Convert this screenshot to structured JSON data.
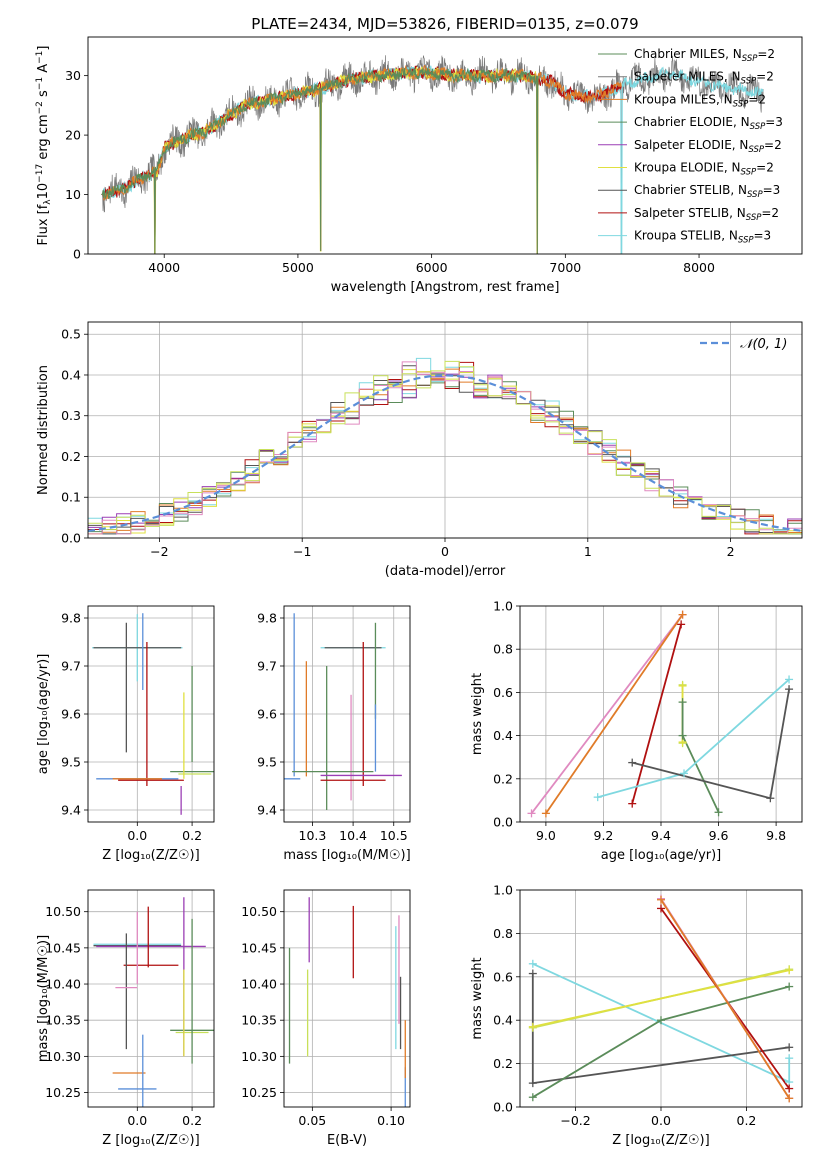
{
  "chart_data": [
    {
      "id": "spectrum",
      "type": "line",
      "title": "PLATE=2434, MJD=53826, FIBERID=0135, z=0.079",
      "xlabel": "wavelength [Angstrom, rest frame]",
      "ylabel_parts": [
        "Flux [f",
        "λ",
        "10",
        "−17",
        " erg cm",
        "−2",
        " s",
        "−1",
        " A",
        "−1",
        "]"
      ],
      "xlim": [
        3430,
        8770
      ],
      "ylim": [
        0,
        36.5
      ],
      "xticks": [
        4000,
        5000,
        6000,
        7000,
        8000
      ],
      "yticks": [
        0,
        10,
        20,
        30
      ],
      "grid": false,
      "legend_position": "right",
      "legend": [
        {
          "label": "Chabrier MILES, N",
          "sub": "SSP",
          "suffix": "=2",
          "color": "#5b8c5a"
        },
        {
          "label": "Salpeter MILES, N",
          "sub": "SSP",
          "suffix": "=2",
          "color": "#7a7a7a"
        },
        {
          "label": "Kroupa MILES, N",
          "sub": "SSP",
          "suffix": "=2",
          "color": "#e07b28"
        },
        {
          "label": "Chabrier ELODIE, N",
          "sub": "SSP",
          "suffix": "=3",
          "color": "#5b8c5a"
        },
        {
          "label": "Salpeter ELODIE, N",
          "sub": "SSP",
          "suffix": "=2",
          "color": "#9b3fb5"
        },
        {
          "label": "Kroupa ELODIE, N",
          "sub": "SSP",
          "suffix": "=2",
          "color": "#e0e040"
        },
        {
          "label": "Chabrier STELIB, N",
          "sub": "SSP",
          "suffix": "=3",
          "color": "#555555"
        },
        {
          "label": "Salpeter STELIB, N",
          "sub": "SSP",
          "suffix": "=2",
          "color": "#b01010"
        },
        {
          "label": "Kroupa STELIB, N",
          "sub": "SSP",
          "suffix": "=3",
          "color": "#7fd8e0"
        }
      ],
      "series": [
        {
          "color": "#7fd8e0",
          "start": 3530,
          "end": 8480
        },
        {
          "color": "#b01010",
          "start": 3530,
          "end": 7420
        },
        {
          "color": "#e0e040",
          "start": 3900,
          "end": 6800
        },
        {
          "color": "#e07b28",
          "start": 3530,
          "end": 7420
        },
        {
          "color": "#5b8c5a",
          "start": 3530,
          "end": 6800
        }
      ],
      "data_series": {
        "color": "#7a7a7a",
        "start": 3530,
        "end": 8480
      },
      "shape": [
        [
          3530,
          10
        ],
        [
          3700,
          11
        ],
        [
          3850,
          13
        ],
        [
          3950,
          14
        ],
        [
          4000,
          18
        ],
        [
          4100,
          19
        ],
        [
          4200,
          20
        ],
        [
          4300,
          20.5
        ],
        [
          4400,
          22
        ],
        [
          4600,
          25
        ],
        [
          4800,
          26
        ],
        [
          5000,
          27
        ],
        [
          5200,
          28
        ],
        [
          5400,
          29.5
        ],
        [
          5600,
          30
        ],
        [
          5800,
          30.5
        ],
        [
          6000,
          30.5
        ],
        [
          6200,
          30
        ],
        [
          6500,
          30
        ],
        [
          6700,
          30
        ],
        [
          6900,
          29
        ],
        [
          7000,
          27
        ],
        [
          7100,
          26.5
        ],
        [
          7200,
          26.5
        ],
        [
          7300,
          27
        ],
        [
          7500,
          29
        ],
        [
          7700,
          30
        ],
        [
          7800,
          30.5
        ],
        [
          8000,
          29
        ],
        [
          8200,
          28
        ],
        [
          8480,
          27
        ]
      ],
      "dips": [
        [
          3530,
          0
        ],
        [
          3930,
          0
        ],
        [
          5170,
          0.5
        ],
        [
          6790,
          0
        ],
        [
          7420,
          0
        ]
      ]
    },
    {
      "id": "residuals",
      "type": "line",
      "xlabel": "(data-model)/error",
      "ylabel": "Normed distribution",
      "xlim": [
        -2.5,
        2.5
      ],
      "ylim": [
        0,
        0.53
      ],
      "xticks": [
        -2,
        -1,
        0,
        1,
        2
      ],
      "xtick_labels": [
        "−2",
        "−1",
        "0",
        "1",
        "2"
      ],
      "yticks": [
        0,
        0.1,
        0.2,
        0.3,
        0.4,
        0.5
      ],
      "ytick_labels": [
        "0.0",
        "0.1",
        "0.2",
        "0.3",
        "0.4",
        "0.5"
      ],
      "grid": true,
      "legend_position": "top-right",
      "legend": [
        {
          "label": "𝒩(0, 1)",
          "color": "#5b8fd9",
          "dash": true
        }
      ],
      "hist_colors": [
        "#5b8c5a",
        "#7fd8e0",
        "#b01010",
        "#e07b28",
        "#9b3fb5",
        "#e0e040",
        "#555555",
        "#e08ac0",
        "#c8e05a"
      ]
    },
    {
      "id": "age-Z",
      "type": "scatter",
      "xlabel": "Z [log₁₀(Z/Z☉)]",
      "ylabel": "age  [log₁₀(age/yr)]",
      "xlim": [
        -0.18,
        0.28
      ],
      "ylim": [
        9.375,
        9.825
      ],
      "xticks": [
        0.0,
        0.2
      ],
      "xtick_labels": [
        "0.0",
        "0.2"
      ],
      "yticks": [
        9.4,
        9.5,
        9.6,
        9.7,
        9.8
      ],
      "ytick_labels": [
        "9.4",
        "9.5",
        "9.6",
        "9.7",
        "9.8"
      ],
      "grid": true,
      "errorbars": [
        {
          "x": 0.0,
          "y": 9.738,
          "xerr": 0.165,
          "yerr": 0.07,
          "color": "#7fd8e0"
        },
        {
          "x": 0.0,
          "y": 9.738,
          "xerr": 0.16,
          "yerr": 0.0,
          "color": "#555555"
        },
        {
          "x": -0.04,
          "y": 9.655,
          "xerr": 0.0,
          "yerr": 0.135,
          "color": "#555555"
        },
        {
          "x": 0.02,
          "y": 9.73,
          "xerr": 0.0,
          "yerr": 0.08,
          "color": "#5b8fd9"
        },
        {
          "x": 0.035,
          "y": 9.6,
          "xerr": 0.0,
          "yerr": 0.15,
          "color": "#b01010"
        },
        {
          "x": 0.0,
          "y": 9.465,
          "xerr": 0.15,
          "yerr": 0.0,
          "color": "#5b8fd9"
        },
        {
          "x": 0.0,
          "y": 9.465,
          "xerr": 0.09,
          "yerr": 0.0,
          "color": "#e07b28"
        },
        {
          "x": 0.05,
          "y": 9.462,
          "xerr": 0.12,
          "yerr": 0.0,
          "color": "#b01010"
        },
        {
          "x": 0.2,
          "y": 9.48,
          "xerr": 0.08,
          "yerr": 0.0,
          "color": "#5b8c5a"
        },
        {
          "x": 0.21,
          "y": 9.475,
          "xerr": 0.06,
          "yerr": 0.0,
          "color": "#c8e05a"
        },
        {
          "x": 0.2,
          "y": 9.6,
          "xerr": 0.0,
          "yerr": 0.1,
          "color": "#5b8c5a"
        },
        {
          "x": 0.17,
          "y": 9.555,
          "xerr": 0.0,
          "yerr": 0.09,
          "color": "#e0e040"
        },
        {
          "x": 0.16,
          "y": 9.42,
          "xerr": 0.0,
          "yerr": 0.03,
          "color": "#9b3fb5"
        }
      ]
    },
    {
      "id": "age-mass",
      "type": "scatter",
      "xlabel": "mass [log₁₀(M/M☉)]",
      "xlim": [
        10.23,
        10.54
      ],
      "ylim": [
        9.375,
        9.825
      ],
      "xticks": [
        10.3,
        10.4,
        10.5
      ],
      "xtick_labels": [
        "10.3",
        "10.4",
        "10.5"
      ],
      "yticks": [
        9.4,
        9.5,
        9.6,
        9.7,
        9.8
      ],
      "ytick_labels": [
        "9.4",
        "9.5",
        "9.6",
        "9.7",
        "9.8"
      ],
      "grid": true,
      "errorbars": [
        {
          "x": 10.4,
          "y": 9.738,
          "xerr": 0.08,
          "yerr": 0.0,
          "color": "#7fd8e0"
        },
        {
          "x": 10.4,
          "y": 9.738,
          "xerr": 0.07,
          "yerr": 0.0,
          "color": "#555555"
        },
        {
          "x": 10.255,
          "y": 9.64,
          "xerr": 0.0,
          "yerr": 0.17,
          "color": "#5b8fd9"
        },
        {
          "x": 10.285,
          "y": 9.59,
          "xerr": 0.0,
          "yerr": 0.12,
          "color": "#e07b28"
        },
        {
          "x": 10.335,
          "y": 9.55,
          "xerr": 0.0,
          "yerr": 0.15,
          "color": "#5b8c5a"
        },
        {
          "x": 10.395,
          "y": 9.53,
          "xerr": 0.0,
          "yerr": 0.11,
          "color": "#e08ac0"
        },
        {
          "x": 10.425,
          "y": 9.6,
          "xerr": 0.0,
          "yerr": 0.15,
          "color": "#b01010"
        },
        {
          "x": 10.455,
          "y": 9.69,
          "xerr": 0.0,
          "yerr": 0.1,
          "color": "#5b8c5a"
        },
        {
          "x": 10.455,
          "y": 9.55,
          "xerr": 0.0,
          "yerr": 0.07,
          "color": "#5b8fd9"
        },
        {
          "x": 10.35,
          "y": 9.48,
          "xerr": 0.1,
          "yerr": 0.0,
          "color": "#5b8c5a"
        },
        {
          "x": 10.42,
          "y": 9.472,
          "xerr": 0.1,
          "yerr": 0.0,
          "color": "#9b3fb5"
        },
        {
          "x": 10.25,
          "y": 9.465,
          "xerr": 0.02,
          "yerr": 0.0,
          "color": "#5b8fd9"
        },
        {
          "x": 10.4,
          "y": 9.462,
          "xerr": 0.08,
          "yerr": 0.0,
          "color": "#b01010"
        }
      ]
    },
    {
      "id": "weight-age",
      "type": "line",
      "xlabel": "age  [log₁₀(age/yr)]",
      "ylabel": "mass weight",
      "xlim": [
        8.91,
        9.89
      ],
      "ylim": [
        0,
        1
      ],
      "xticks": [
        9.0,
        9.2,
        9.4,
        9.6,
        9.8
      ],
      "xtick_labels": [
        "9.0",
        "9.2",
        "9.4",
        "9.6",
        "9.8"
      ],
      "yticks": [
        0,
        0.2,
        0.4,
        0.6,
        0.8,
        1.0
      ],
      "ytick_labels": [
        "0.0",
        "0.2",
        "0.4",
        "0.6",
        "0.8",
        "1.0"
      ],
      "grid": true,
      "series": [
        {
          "color": "#e08ac0",
          "x": [
            8.95,
            9.475
          ],
          "y": [
            0.04,
            0.96
          ]
        },
        {
          "color": "#e07b28",
          "x": [
            9.0,
            9.475
          ],
          "y": [
            0.04,
            0.96
          ]
        },
        {
          "color": "#b01010",
          "x": [
            9.3,
            9.47
          ],
          "y": [
            0.085,
            0.915
          ]
        },
        {
          "color": "#c8e05a",
          "x": [
            9.475,
            9.475
          ],
          "y": [
            0.365,
            0.635
          ]
        },
        {
          "color": "#e0e040",
          "x": [
            9.475,
            9.475
          ],
          "y": [
            0.37,
            0.63
          ]
        },
        {
          "color": "#5b8c5a",
          "x": [
            9.475,
            9.475,
            9.6
          ],
          "y": [
            0.555,
            0.4,
            0.045
          ]
        },
        {
          "color": "#7fd8e0",
          "x": [
            9.18,
            9.48,
            9.845
          ],
          "y": [
            0.115,
            0.225,
            0.66
          ]
        },
        {
          "color": "#555555",
          "x": [
            9.3,
            9.78,
            9.845
          ],
          "y": [
            0.275,
            0.11,
            0.615
          ]
        }
      ]
    },
    {
      "id": "mass-Z",
      "type": "scatter",
      "xlabel": "Z [log₁₀(Z/Z☉)]",
      "ylabel": "mass [log₁₀(M/M☉)]",
      "xlim": [
        -0.18,
        0.28
      ],
      "ylim": [
        10.23,
        10.53
      ],
      "xticks": [
        0.0,
        0.2
      ],
      "xtick_labels": [
        "0.0",
        "0.2"
      ],
      "yticks": [
        10.25,
        10.3,
        10.35,
        10.4,
        10.45,
        10.5
      ],
      "ytick_labels": [
        "10.25",
        "10.30",
        "10.35",
        "10.40",
        "10.45",
        "10.50"
      ],
      "grid": true,
      "errorbars": [
        {
          "x": 0.0,
          "y": 10.455,
          "xerr": 0.16,
          "yerr": 0.0,
          "color": "#7fd8e0"
        },
        {
          "x": 0.0,
          "y": 10.453,
          "xerr": 0.16,
          "yerr": 0.0,
          "color": "#555555"
        },
        {
          "x": 0.05,
          "y": 10.452,
          "xerr": 0.2,
          "yerr": 0.0,
          "color": "#9b3fb5"
        },
        {
          "x": 0.05,
          "y": 10.426,
          "xerr": 0.1,
          "yerr": 0.0,
          "color": "#b01010"
        },
        {
          "x": 0.04,
          "y": 10.465,
          "xerr": 0.0,
          "yerr": 0.042,
          "color": "#b01010"
        },
        {
          "x": -0.04,
          "y": 10.39,
          "xerr": 0.0,
          "yerr": 0.08,
          "color": "#555555"
        },
        {
          "x": 0.0,
          "y": 10.45,
          "xerr": 0.0,
          "yerr": 0.05,
          "color": "#e08ac0"
        },
        {
          "x": -0.04,
          "y": 10.395,
          "xerr": 0.04,
          "yerr": 0.0,
          "color": "#e08ac0"
        },
        {
          "x": 0.2,
          "y": 10.336,
          "xerr": 0.08,
          "yerr": 0.0,
          "color": "#5b8c5a"
        },
        {
          "x": 0.2,
          "y": 10.333,
          "xerr": 0.06,
          "yerr": 0.0,
          "color": "#c8e05a"
        },
        {
          "x": 0.2,
          "y": 10.39,
          "xerr": 0.0,
          "yerr": 0.1,
          "color": "#5b8c5a"
        },
        {
          "x": 0.17,
          "y": 10.41,
          "xerr": 0.0,
          "yerr": 0.11,
          "color": "#9b3fb5"
        },
        {
          "x": 0.17,
          "y": 10.36,
          "xerr": 0.0,
          "yerr": 0.06,
          "color": "#e0e040"
        },
        {
          "x": -0.03,
          "y": 10.277,
          "xerr": 0.06,
          "yerr": 0.0,
          "color": "#e07b28"
        },
        {
          "x": 0.02,
          "y": 10.28,
          "xerr": 0.0,
          "yerr": 0.05,
          "color": "#5b8fd9"
        },
        {
          "x": 0.0,
          "y": 10.255,
          "xerr": 0.07,
          "yerr": 0.0,
          "color": "#5b8fd9"
        }
      ]
    },
    {
      "id": "mass-EBV",
      "type": "scatter",
      "xlabel": "E(B-V)",
      "xlim": [
        0.032,
        0.112
      ],
      "ylim": [
        10.23,
        10.53
      ],
      "xticks": [
        0.05,
        0.1
      ],
      "xtick_labels": [
        "0.05",
        "0.10"
      ],
      "yticks": [
        10.25,
        10.3,
        10.35,
        10.4,
        10.45,
        10.5
      ],
      "ytick_labels": [
        "10.25",
        "10.30",
        "10.35",
        "10.40",
        "10.45",
        "10.50"
      ],
      "grid": true,
      "errorbars": [
        {
          "x": 0.0355,
          "y": 10.37,
          "xerr": 0.0,
          "yerr": 0.08,
          "color": "#5b8c5a"
        },
        {
          "x": 0.047,
          "y": 10.36,
          "xerr": 0.0,
          "yerr": 0.06,
          "color": "#c8e05a"
        },
        {
          "x": 0.048,
          "y": 10.475,
          "xerr": 0.0,
          "yerr": 0.045,
          "color": "#9b3fb5"
        },
        {
          "x": 0.076,
          "y": 10.458,
          "xerr": 0.0,
          "yerr": 0.05,
          "color": "#b01010"
        },
        {
          "x": 0.105,
          "y": 10.42,
          "xerr": 0.0,
          "yerr": 0.075,
          "color": "#e08ac0"
        },
        {
          "x": 0.103,
          "y": 10.395,
          "xerr": 0.0,
          "yerr": 0.085,
          "color": "#7fd8e0"
        },
        {
          "x": 0.106,
          "y": 10.36,
          "xerr": 0.0,
          "yerr": 0.05,
          "color": "#555555"
        },
        {
          "x": 0.109,
          "y": 10.255,
          "xerr": 0.0,
          "yerr": 0.03,
          "color": "#5b8fd9"
        },
        {
          "x": 0.109,
          "y": 10.31,
          "xerr": 0.0,
          "yerr": 0.04,
          "color": "#e07b28"
        }
      ]
    },
    {
      "id": "weight-Z",
      "type": "line",
      "xlabel": "Z [log₁₀(Z/Z☉)]",
      "ylabel": "mass weight",
      "xlim": [
        -0.33,
        0.33
      ],
      "ylim": [
        0,
        1
      ],
      "xticks": [
        -0.2,
        0.0,
        0.2
      ],
      "xtick_labels": [
        "−0.2",
        "0.0",
        "0.2"
      ],
      "yticks": [
        0,
        0.2,
        0.4,
        0.6,
        0.8,
        1.0
      ],
      "ytick_labels": [
        "0.0",
        "0.2",
        "0.4",
        "0.6",
        "0.8",
        "1.0"
      ],
      "grid": true,
      "series": [
        {
          "color": "#7fd8e0",
          "x": [
            -0.3,
            0.3,
            0.3
          ],
          "y": [
            0.66,
            0.115,
            0.225
          ]
        },
        {
          "color": "#555555",
          "x": [
            -0.3,
            -0.3,
            0.3
          ],
          "y": [
            0.615,
            0.11,
            0.275
          ]
        },
        {
          "color": "#c8e05a",
          "x": [
            -0.3,
            0.3
          ],
          "y": [
            0.365,
            0.635
          ]
        },
        {
          "color": "#e0e040",
          "x": [
            -0.3,
            0.3
          ],
          "y": [
            0.37,
            0.63
          ]
        },
        {
          "color": "#5b8c5a",
          "x": [
            -0.3,
            0.0,
            0.3
          ],
          "y": [
            0.045,
            0.4,
            0.555
          ]
        },
        {
          "color": "#b01010",
          "x": [
            0.0,
            0.3
          ],
          "y": [
            0.915,
            0.085
          ]
        },
        {
          "color": "#e08ac0",
          "x": [
            0.0,
            0.3
          ],
          "y": [
            0.96,
            0.04
          ]
        },
        {
          "color": "#e07b28",
          "x": [
            0.0,
            0.3
          ],
          "y": [
            0.955,
            0.04
          ]
        }
      ]
    }
  ]
}
